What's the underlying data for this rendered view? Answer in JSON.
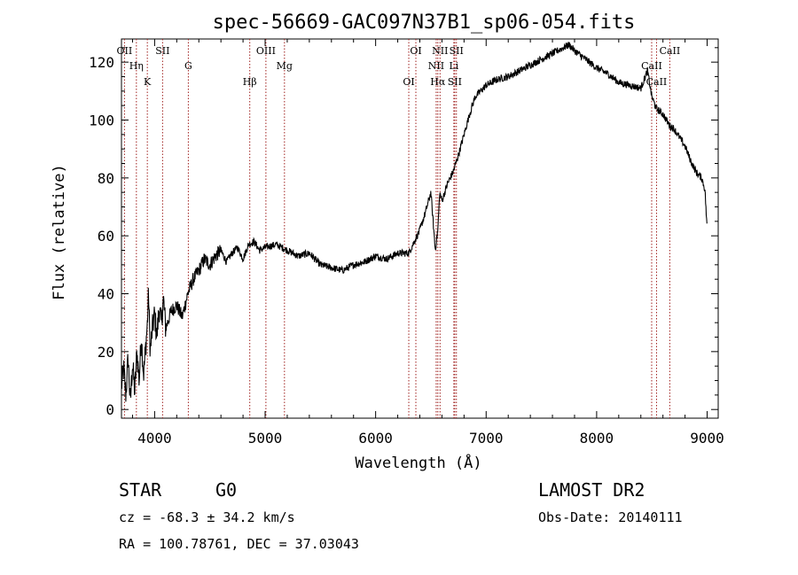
{
  "chart_data": {
    "type": "line",
    "title": "spec-56669-GAC097N37B1_sp06-054.fits",
    "xlabel": "Wavelength (Å)",
    "ylabel": "Flux (relative)",
    "xlim": [
      3700,
      9100
    ],
    "ylim": [
      -3,
      128
    ],
    "xticks": [
      4000,
      5000,
      6000,
      7000,
      8000,
      9000
    ],
    "yticks": [
      0,
      20,
      40,
      60,
      80,
      100,
      120
    ],
    "grid": false,
    "series": [
      {
        "x": [
          3700,
          3720,
          3740,
          3760,
          3780,
          3800,
          3820,
          3840,
          3860,
          3880,
          3900,
          3920,
          3935,
          3945,
          3960,
          3980,
          4000,
          4020,
          4040,
          4060,
          4080,
          4100,
          4150,
          4200,
          4250,
          4300,
          4350,
          4400,
          4450,
          4500,
          4550,
          4600,
          4650,
          4700,
          4750,
          4800,
          4850,
          4900,
          4950,
          5000,
          5100,
          5200,
          5300,
          5400,
          5500,
          5600,
          5700,
          5800,
          5900,
          6000,
          6100,
          6200,
          6300,
          6350,
          6400,
          6450,
          6500,
          6540,
          6563,
          6580,
          6600,
          6650,
          6700,
          6750,
          6800,
          6850,
          6900,
          6950,
          7000,
          7100,
          7200,
          7300,
          7400,
          7500,
          7600,
          7700,
          7750,
          7800,
          7900,
          8000,
          8100,
          8200,
          8300,
          8400,
          8440,
          8460,
          8500,
          8540,
          8600,
          8662,
          8700,
          8800,
          8850,
          8900,
          8950,
          8980,
          9000
        ],
        "y": [
          8,
          14,
          5,
          18,
          2,
          16,
          6,
          20,
          10,
          25,
          12,
          22,
          30,
          40,
          20,
          28,
          33,
          25,
          35,
          30,
          38,
          28,
          34,
          36,
          32,
          40,
          45,
          48,
          52,
          50,
          53,
          55,
          51,
          54,
          56,
          52,
          57,
          58,
          55,
          56,
          57,
          55,
          53,
          54,
          50,
          49,
          48,
          50,
          51,
          53,
          52,
          54,
          54,
          58,
          62,
          68,
          75,
          55,
          62,
          75,
          72,
          78,
          82,
          88,
          95,
          102,
          108,
          110,
          112,
          114,
          115,
          117,
          119,
          121,
          123,
          125,
          126,
          124,
          121,
          118,
          116,
          113,
          112,
          111,
          115,
          117,
          108,
          104,
          102,
          98,
          97,
          91,
          86,
          82,
          80,
          76,
          62
        ]
      }
    ],
    "lines": [
      {
        "wavelength": 3727,
        "labels": [
          "OII"
        ]
      },
      {
        "wavelength": 3835,
        "labels": [
          "Hη"
        ]
      },
      {
        "wavelength": 3934,
        "labels": [
          "K"
        ]
      },
      {
        "wavelength": 4072,
        "labels": [
          "SII"
        ]
      },
      {
        "wavelength": 4305,
        "labels": [
          "G"
        ]
      },
      {
        "wavelength": 4861,
        "labels": [
          "Hβ"
        ]
      },
      {
        "wavelength": 5007,
        "labels": [
          "OIII"
        ]
      },
      {
        "wavelength": 5175,
        "labels": [
          "Mg"
        ]
      },
      {
        "wavelength": 6300,
        "labels": [
          "OI"
        ]
      },
      {
        "wavelength": 6364,
        "labels": [
          "OI"
        ]
      },
      {
        "wavelength": 6548,
        "labels": [
          "NII"
        ]
      },
      {
        "wavelength": 6563,
        "labels": [
          "Hα"
        ]
      },
      {
        "wavelength": 6583,
        "labels": [
          "NII"
        ]
      },
      {
        "wavelength": 6708,
        "labels": [
          "Li"
        ]
      },
      {
        "wavelength": 6716,
        "labels": [
          "SII"
        ]
      },
      {
        "wavelength": 6731,
        "labels": [
          "SII"
        ]
      },
      {
        "wavelength": 8498,
        "labels": [
          "CaII"
        ]
      },
      {
        "wavelength": 8542,
        "labels": [
          "CaII"
        ]
      },
      {
        "wavelength": 8662,
        "labels": [
          "CaII"
        ]
      }
    ],
    "line_color": "#a0201e"
  },
  "footer": {
    "class_label": "STAR",
    "subclass_label": "G0",
    "survey": "LAMOST DR2",
    "cz": "cz = -68.3 ± 34.2 km/s",
    "obs_date": "Obs-Date: 20140111",
    "coords": "RA = 100.78761, DEC =  37.03043"
  }
}
